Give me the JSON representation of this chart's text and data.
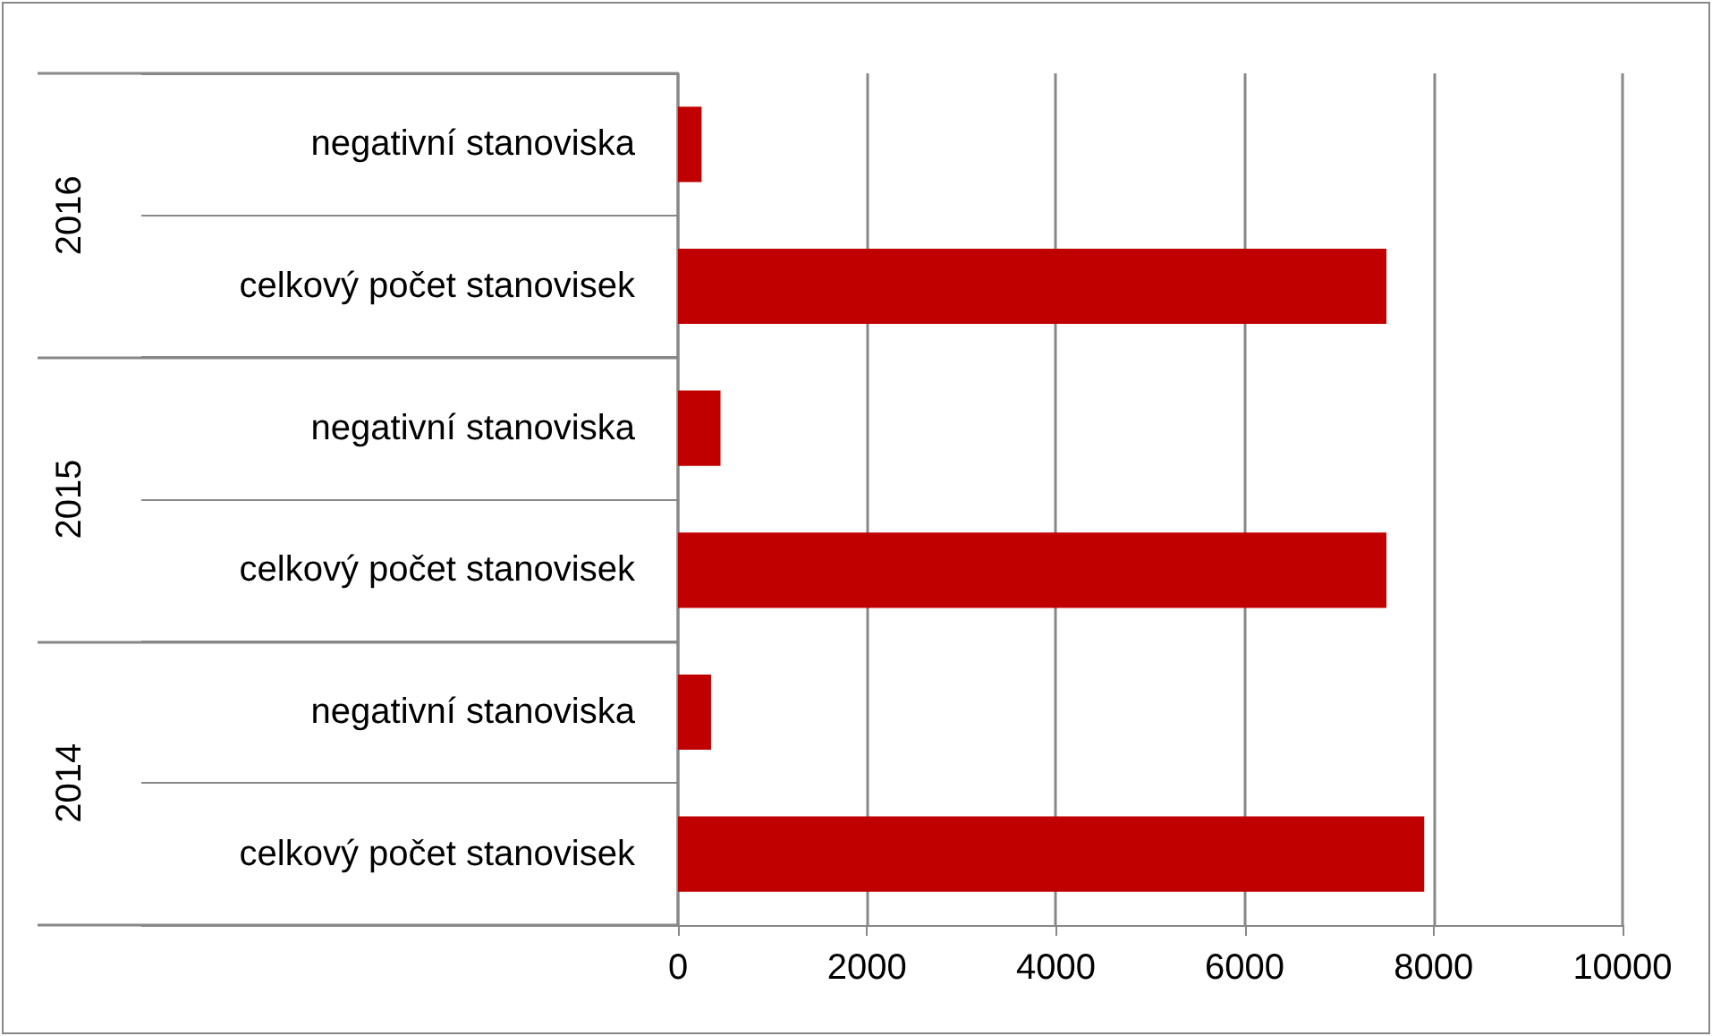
{
  "chart_data": {
    "type": "bar",
    "orientation": "horizontal",
    "categories": [
      "negativní stanoviska",
      "celkový počet stanovisek",
      "negativní stanoviska",
      "celkový počet stanovisek",
      "negativní stanoviska",
      "celkový počet stanovisek"
    ],
    "values": [
      250,
      7500,
      450,
      7500,
      350,
      7900
    ],
    "color": "#c00000",
    "xlim": [
      0,
      10000
    ],
    "xticks": [
      0,
      2000,
      4000,
      6000,
      8000,
      10000
    ],
    "grid": "x",
    "annotations": [
      "2016",
      "2015",
      "2014"
    ]
  }
}
